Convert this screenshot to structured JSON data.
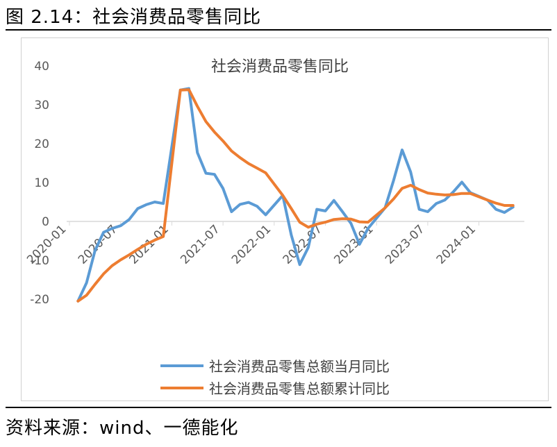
{
  "figure_title": "图 2.14：社会消费品零售同比",
  "source_note": "资料来源：wind、一德能化",
  "colors": {
    "monthly": "#5b9bd5",
    "cumulative": "#ed7d31",
    "axis": "#d9d9d9",
    "text": "#595959"
  },
  "chart_data": {
    "type": "line",
    "title": "社会消费品零售同比",
    "ylim": [
      -20,
      40
    ],
    "yticks": [
      -20,
      -10,
      0,
      10,
      20,
      30,
      40
    ],
    "x": [
      "2020-01",
      "2020-02",
      "2020-03",
      "2020-04",
      "2020-05",
      "2020-06",
      "2020-07",
      "2020-08",
      "2020-09",
      "2020-10",
      "2020-11",
      "2020-12",
      "2021-01",
      "2021-02",
      "2021-03",
      "2021-04",
      "2021-05",
      "2021-06",
      "2021-07",
      "2021-08",
      "2021-09",
      "2021-10",
      "2021-11",
      "2021-12",
      "2022-01",
      "2022-02",
      "2022-03",
      "2022-04",
      "2022-05",
      "2022-06",
      "2022-07",
      "2022-08",
      "2022-09",
      "2022-10",
      "2022-11",
      "2022-12",
      "2023-01",
      "2023-02",
      "2023-03",
      "2023-04",
      "2023-05",
      "2023-06",
      "2023-07",
      "2023-08",
      "2023-09",
      "2023-10",
      "2023-11",
      "2023-12",
      "2024-01",
      "2024-02",
      "2024-03",
      "2024-04",
      "2024-05",
      "2024-06"
    ],
    "xticks": [
      "2020-01",
      "2020-07",
      "2021-01",
      "2021-07",
      "2022-01",
      "2022-07",
      "2023-01",
      "2023-07",
      "2024-01"
    ],
    "legend_position": "bottom",
    "grid": false,
    "series": [
      {
        "name": "社会消费品零售总额当月同比",
        "values": [
          null,
          -20.5,
          -15.8,
          -7.5,
          -2.8,
          -1.8,
          -1.1,
          0.5,
          3.3,
          4.3,
          5.0,
          4.6,
          null,
          33.8,
          34.2,
          17.7,
          12.4,
          12.1,
          8.5,
          2.5,
          4.4,
          4.9,
          3.9,
          1.7,
          null,
          6.7,
          -3.5,
          -11.1,
          -6.7,
          3.1,
          2.7,
          5.4,
          2.5,
          -0.5,
          -5.9,
          -1.8,
          null,
          3.5,
          10.6,
          18.4,
          12.7,
          3.1,
          2.5,
          4.6,
          5.5,
          7.6,
          10.1,
          7.4,
          null,
          5.5,
          3.1,
          2.3,
          3.7,
          null
        ]
      },
      {
        "name": "社会消费品零售总额累计同比",
        "values": [
          null,
          -20.5,
          -19.0,
          -16.2,
          -13.5,
          -11.4,
          -9.9,
          -8.6,
          -7.2,
          -5.9,
          -4.8,
          -3.9,
          null,
          33.8,
          33.9,
          29.6,
          25.7,
          23.0,
          20.7,
          18.1,
          16.4,
          14.9,
          13.7,
          12.5,
          null,
          6.7,
          3.3,
          -0.2,
          -1.5,
          -0.7,
          -0.2,
          0.5,
          0.7,
          0.6,
          -0.1,
          -0.2,
          null,
          3.5,
          5.8,
          8.5,
          9.3,
          8.2,
          7.3,
          7.0,
          6.8,
          6.9,
          7.2,
          7.2,
          null,
          5.5,
          4.7,
          4.1,
          4.1,
          null
        ]
      }
    ]
  }
}
